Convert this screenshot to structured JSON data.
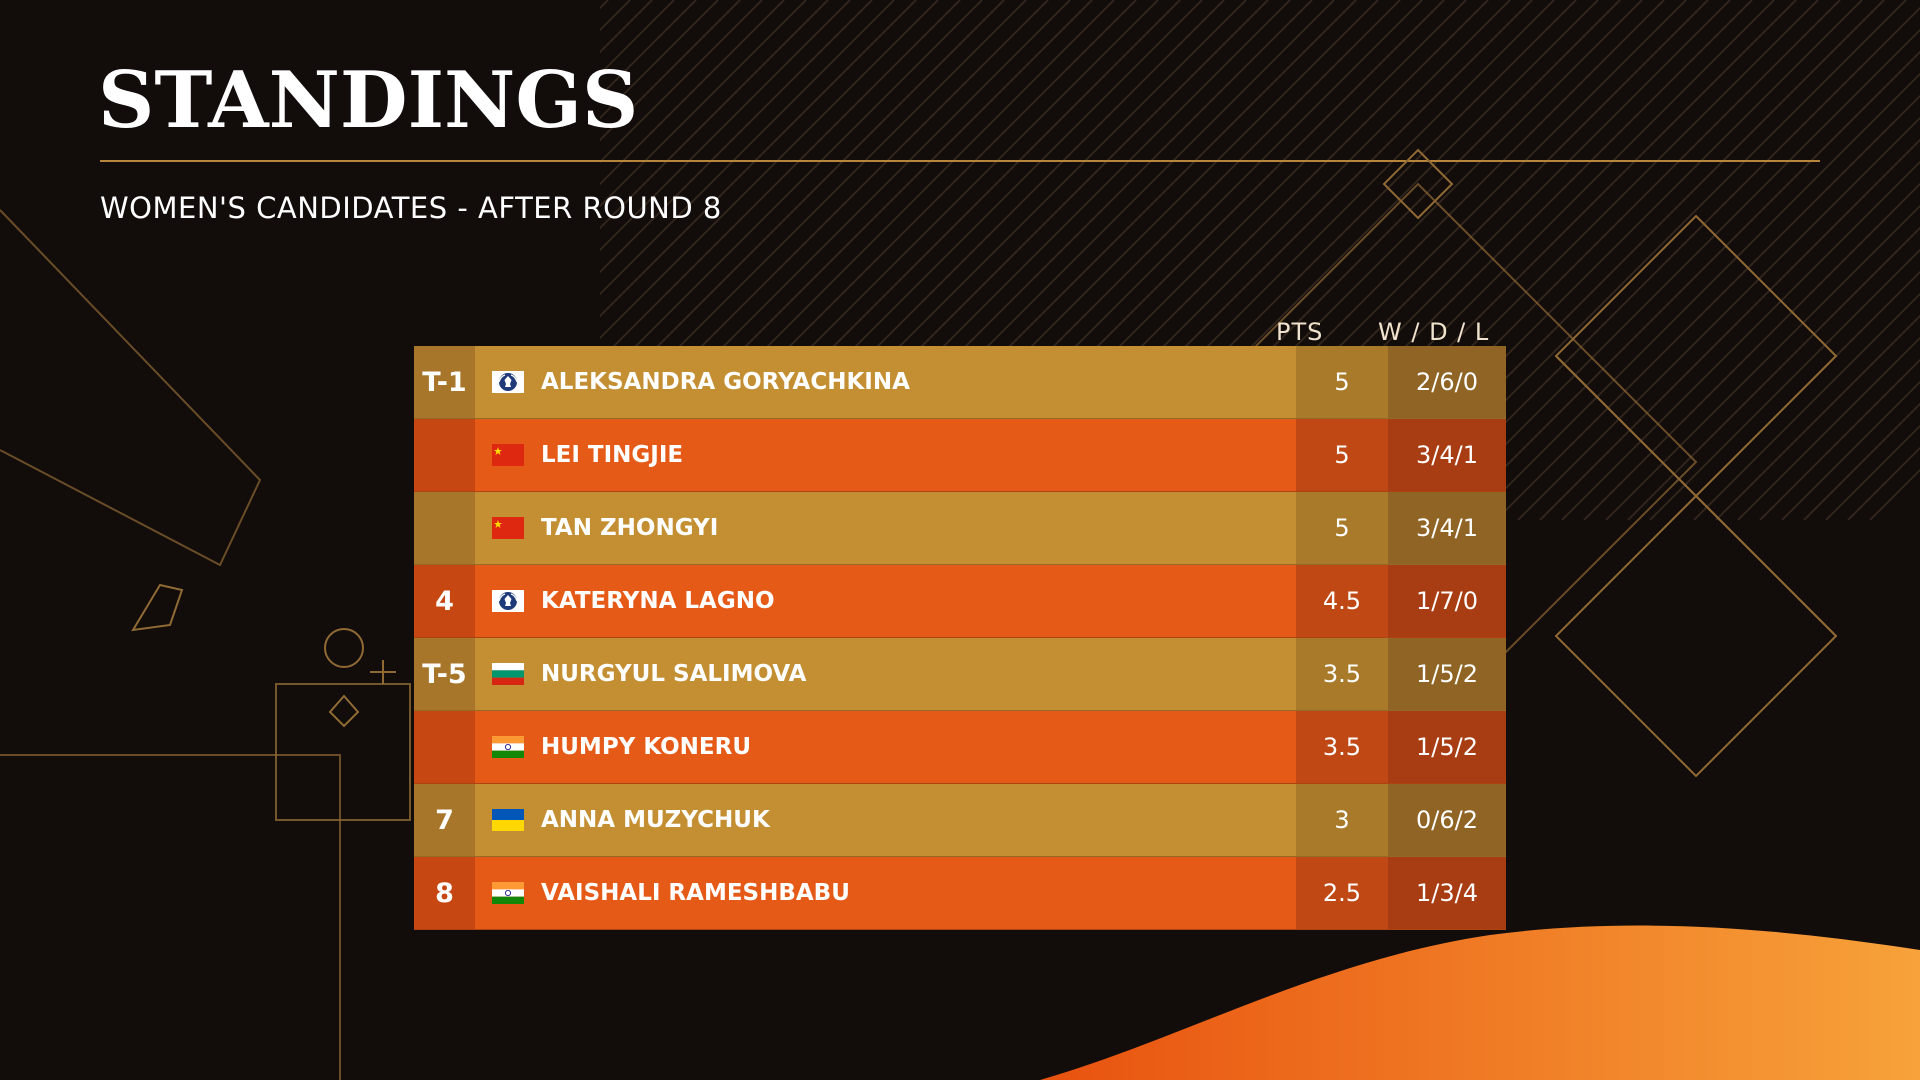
{
  "header": {
    "title": "STANDINGS",
    "subtitle": "WOMEN'S CANDIDATES - AFTER ROUND 8"
  },
  "columns": {
    "pts": "PTS",
    "wdl": "W / D / L"
  },
  "rows": [
    {
      "rank": "T-1",
      "flag": "fide-flag-icon",
      "name": "ALEKSANDRA GORYACHKINA",
      "pts": "5",
      "wdl": "2/6/0",
      "style": "gold"
    },
    {
      "rank": "",
      "flag": "china-flag-icon",
      "name": "LEI TINGJIE",
      "pts": "5",
      "wdl": "3/4/1",
      "style": "orange"
    },
    {
      "rank": "",
      "flag": "china-flag-icon",
      "name": "TAN ZHONGYI",
      "pts": "5",
      "wdl": "3/4/1",
      "style": "gold"
    },
    {
      "rank": "4",
      "flag": "fide-flag-icon",
      "name": "KATERYNA LAGNO",
      "pts": "4.5",
      "wdl": "1/7/0",
      "style": "orange"
    },
    {
      "rank": "T-5",
      "flag": "bulgaria-flag-icon",
      "name": "NURGYUL SALIMOVA",
      "pts": "3.5",
      "wdl": "1/5/2",
      "style": "gold"
    },
    {
      "rank": "",
      "flag": "india-flag-icon",
      "name": "HUMPY KONERU",
      "pts": "3.5",
      "wdl": "1/5/2",
      "style": "orange"
    },
    {
      "rank": "7",
      "flag": "ukraine-flag-icon",
      "name": "ANNA MUZYCHUK",
      "pts": "3",
      "wdl": "0/6/2",
      "style": "gold"
    },
    {
      "rank": "8",
      "flag": "india-flag-icon",
      "name": "VAISHALI RAMESHBABU",
      "pts": "2.5",
      "wdl": "1/3/4",
      "style": "orange"
    }
  ],
  "colors": {
    "background": "#120c0a",
    "gold_row": "#c48f33",
    "orange_row": "#e65a17",
    "accent_line": "#c8913a"
  }
}
